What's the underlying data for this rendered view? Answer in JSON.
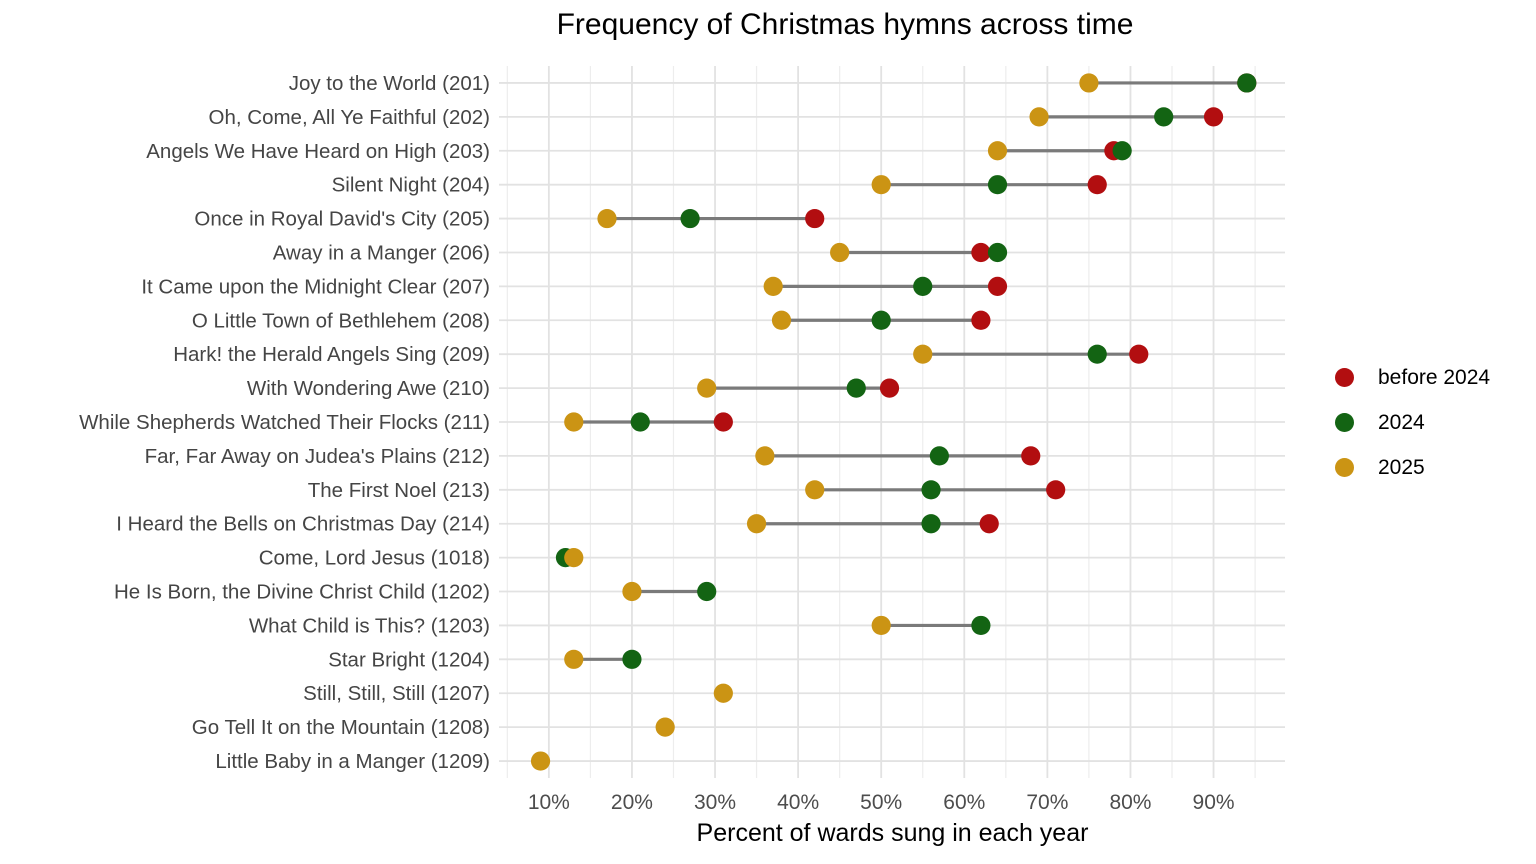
{
  "chart_data": {
    "type": "scatter",
    "variant": "dumbbell-dot-plot",
    "title": "Frequency of Christmas hymns across time",
    "xlabel": "Percent of wards sung in each year",
    "x_tick_labels": [
      "10%",
      "20%",
      "30%",
      "40%",
      "50%",
      "60%",
      "70%",
      "80%",
      "90%"
    ],
    "x_major_ticks": [
      10,
      20,
      30,
      40,
      50,
      60,
      70,
      80,
      90
    ],
    "x_minor_ticks": [
      5,
      15,
      25,
      35,
      45,
      55,
      65,
      75,
      85,
      95
    ],
    "xlim": [
      4,
      98.6
    ],
    "grid": "major and minor vertical, major horizontal per category, light gray on white",
    "legend_position": "right",
    "connector_color": "#7a7a7a",
    "categories": [
      "Joy to the World (201)",
      "Oh, Come, All Ye Faithful (202)",
      "Angels We Have Heard on High (203)",
      "Silent Night (204)",
      "Once in Royal David's City (205)",
      "Away in a Manger (206)",
      "It Came upon the Midnight Clear (207)",
      "O Little Town of Bethlehem (208)",
      "Hark! the Herald Angels Sing (209)",
      "With Wondering Awe (210)",
      "While Shepherds Watched Their Flocks (211)",
      "Far, Far Away on Judea's Plains (212)",
      "The First Noel (213)",
      "I Heard the Bells on Christmas Day (214)",
      "Come, Lord Jesus (1018)",
      "He Is Born, the Divine Christ Child (1202)",
      "What Child is This? (1203)",
      "Star Bright (1204)",
      "Still, Still, Still (1207)",
      "Go Tell It on the Mountain (1208)",
      "Little Baby in a Manger (1209)"
    ],
    "series": [
      {
        "name": "before 2024",
        "color": "#b20e10",
        "values": [
          94,
          90,
          78,
          76,
          42,
          62,
          64,
          62,
          81,
          51,
          31,
          68,
          71,
          63,
          null,
          null,
          null,
          null,
          null,
          null,
          null
        ]
      },
      {
        "name": "2024",
        "color": "#136413",
        "values": [
          94,
          84,
          79,
          64,
          27,
          64,
          55,
          50,
          76,
          47,
          21,
          57,
          56,
          56,
          12,
          29,
          62,
          20,
          null,
          null,
          null
        ]
      },
      {
        "name": "2025",
        "color": "#cb9414",
        "values": [
          75,
          69,
          64,
          50,
          17,
          45,
          37,
          38,
          55,
          29,
          13,
          36,
          42,
          35,
          13,
          20,
          50,
          13,
          31,
          24,
          9
        ]
      }
    ]
  }
}
